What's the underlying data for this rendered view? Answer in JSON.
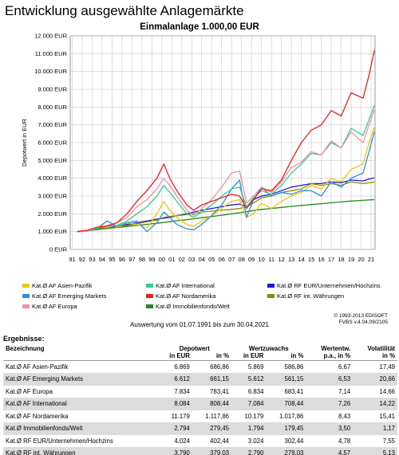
{
  "title": "Entwicklung ausgewählte Anlagemärkte",
  "chart_data": {
    "type": "line",
    "title": "Einmalanlage 1.000,00 EUR",
    "ylabel": "Depotwert in EUR",
    "xlabel": "",
    "ylim": [
      0,
      12000
    ],
    "xlim": [
      1991.5,
      2021.33
    ],
    "y_ticks": [
      {
        "value": 12000,
        "label": "12.000 EUR"
      },
      {
        "value": 11000,
        "label": "11.000 EUR"
      },
      {
        "value": 10000,
        "label": "10.000 EUR"
      },
      {
        "value": 9000,
        "label": "9.000 EUR"
      },
      {
        "value": 8000,
        "label": "8.000 EUR"
      },
      {
        "value": 7000,
        "label": "7.000 EUR"
      },
      {
        "value": 6000,
        "label": "6.000 EUR"
      },
      {
        "value": 5000,
        "label": "5.000 EUR"
      },
      {
        "value": 4000,
        "label": "4.000 EUR"
      },
      {
        "value": 3000,
        "label": "3.000 EUR"
      },
      {
        "value": 2000,
        "label": "2.000 EUR"
      },
      {
        "value": 1000,
        "label": "1.000 EUR"
      },
      {
        "value": 0,
        "label": "0 EUR"
      }
    ],
    "x_ticks": [
      {
        "value": 1991,
        "label": "91"
      },
      {
        "value": 1992,
        "label": "92"
      },
      {
        "value": 1993,
        "label": "93"
      },
      {
        "value": 1994,
        "label": "94"
      },
      {
        "value": 1995,
        "label": "95"
      },
      {
        "value": 1996,
        "label": "96"
      },
      {
        "value": 1997,
        "label": "97"
      },
      {
        "value": 1998,
        "label": "98"
      },
      {
        "value": 1999,
        "label": "99"
      },
      {
        "value": 2000,
        "label": "00"
      },
      {
        "value": 2001,
        "label": "01"
      },
      {
        "value": 2002,
        "label": "02"
      },
      {
        "value": 2003,
        "label": "03"
      },
      {
        "value": 2004,
        "label": "04"
      },
      {
        "value": 2005,
        "label": "05"
      },
      {
        "value": 2006,
        "label": "06"
      },
      {
        "value": 2007,
        "label": "07"
      },
      {
        "value": 2008,
        "label": "08"
      },
      {
        "value": 2009,
        "label": "09"
      },
      {
        "value": 2010,
        "label": "10"
      },
      {
        "value": 2011,
        "label": "11"
      },
      {
        "value": 2012,
        "label": "12"
      },
      {
        "value": 2013,
        "label": "13"
      },
      {
        "value": 2014,
        "label": "14"
      },
      {
        "value": 2015,
        "label": "15"
      },
      {
        "value": 2016,
        "label": "16"
      },
      {
        "value": 2017,
        "label": "17"
      },
      {
        "value": 2018,
        "label": "18"
      },
      {
        "value": 2019,
        "label": "19"
      },
      {
        "value": 2020,
        "label": "20"
      },
      {
        "value": 2021,
        "label": "21"
      }
    ],
    "grid": true,
    "x": [
      1991.5,
      1992.5,
      1993.5,
      1994.5,
      1995.5,
      1996.5,
      1997.5,
      1998.5,
      1999.5,
      2000.2,
      2000.8,
      2001.5,
      2002.5,
      2003.2,
      2004.0,
      2005.0,
      2006.0,
      2007.0,
      2007.8,
      2008.5,
      2009.2,
      2010.0,
      2011.0,
      2012.0,
      2013.0,
      2014.0,
      2015.0,
      2016.0,
      2017.0,
      2018.0,
      2019.0,
      2020.2,
      2020.8,
      2021.33
    ],
    "series": [
      {
        "name": "Kat.Ø AF Asien-Pazifik",
        "color": "#f5c400",
        "values": [
          1000,
          1050,
          1200,
          1600,
          1250,
          1500,
          1400,
          1200,
          2000,
          2700,
          2200,
          1800,
          1400,
          1300,
          1600,
          1900,
          2300,
          2700,
          2800,
          1800,
          2000,
          2600,
          2300,
          2700,
          3000,
          3200,
          3600,
          3400,
          4000,
          3800,
          4500,
          4800,
          6000,
          6869
        ]
      },
      {
        "name": "Kat.Ø AF Emerging Markets",
        "color": "#2a8fe0",
        "values": [
          1000,
          1050,
          1150,
          1600,
          1300,
          1500,
          1600,
          1000,
          1500,
          2100,
          1800,
          1400,
          1150,
          1100,
          1400,
          1900,
          2500,
          3400,
          3900,
          1800,
          2800,
          3500,
          3000,
          3200,
          3100,
          3300,
          3300,
          3000,
          3800,
          3500,
          4000,
          4300,
          5500,
          6612
        ]
      },
      {
        "name": "Kat.Ø AF Europa",
        "color": "#f58fa2",
        "values": [
          1000,
          1020,
          1250,
          1350,
          1500,
          1800,
          2400,
          2800,
          3400,
          4000,
          3600,
          3000,
          2200,
          1900,
          2300,
          2800,
          3500,
          4300,
          4400,
          2600,
          3000,
          3500,
          3200,
          3800,
          4600,
          4900,
          5500,
          5300,
          6100,
          5700,
          6600,
          6000,
          7000,
          7834
        ]
      },
      {
        "name": "Kat.Ø AF International",
        "color": "#2ed08e",
        "values": [
          1000,
          1030,
          1200,
          1300,
          1350,
          1600,
          2000,
          2400,
          3000,
          3600,
          3200,
          2700,
          2000,
          1800,
          2100,
          2500,
          3000,
          3400,
          3500,
          2400,
          2900,
          3300,
          3100,
          3600,
          4300,
          4800,
          5400,
          5300,
          6000,
          5700,
          6800,
          6400,
          7300,
          8084
        ]
      },
      {
        "name": "Kat.Ø AF Nordamerika",
        "color": "#e82020",
        "values": [
          1000,
          1080,
          1250,
          1300,
          1500,
          2000,
          2700,
          3300,
          4000,
          4800,
          4000,
          3300,
          2500,
          2200,
          2500,
          2700,
          2900,
          3100,
          3000,
          2300,
          2800,
          3400,
          3300,
          3900,
          5000,
          6000,
          6700,
          7000,
          7800,
          7500,
          8800,
          8500,
          9800,
          11179
        ]
      },
      {
        "name": "Kat.Ø Immobilienfonds/Welt",
        "color": "#1e8a1e",
        "values": [
          1000,
          1050,
          1110,
          1170,
          1230,
          1290,
          1350,
          1410,
          1470,
          1520,
          1560,
          1610,
          1670,
          1720,
          1780,
          1850,
          1920,
          2000,
          2060,
          2120,
          2190,
          2250,
          2300,
          2360,
          2420,
          2470,
          2520,
          2570,
          2620,
          2670,
          2720,
          2760,
          2780,
          2794
        ]
      },
      {
        "name": "Kat.Ø RF EUR/Unternehmen/Hochzins",
        "color": "#1a1ad8",
        "values": [
          1000,
          1070,
          1180,
          1200,
          1300,
          1400,
          1500,
          1600,
          1700,
          1750,
          1800,
          1900,
          2000,
          2100,
          2200,
          2300,
          2400,
          2500,
          2550,
          2400,
          2800,
          3000,
          3100,
          3300,
          3500,
          3600,
          3700,
          3700,
          3800,
          3750,
          3900,
          3850,
          3950,
          4024
        ]
      },
      {
        "name": "Kat.Ø RF int. Währungen",
        "color": "#8a8a00",
        "values": [
          1000,
          1050,
          1150,
          1200,
          1250,
          1350,
          1450,
          1550,
          1650,
          1800,
          1850,
          1900,
          1950,
          2000,
          2100,
          2150,
          2200,
          2250,
          2300,
          2400,
          2600,
          2900,
          3000,
          3200,
          3300,
          3400,
          3700,
          3600,
          3700,
          3600,
          3800,
          3700,
          3750,
          3790
        ]
      }
    ]
  },
  "legend": [
    "Kat.Ø AF Asien-Pazifik",
    "Kat.Ø AF International",
    "Kat.Ø RF EUR/Unternehmen/Hochzins",
    "Kat.Ø AF Emerging Markets",
    "Kat.Ø AF Nordamerika",
    "Kat.Ø RF int. Währungen",
    "Kat.Ø AF Europa",
    "Kat.Ø Immobilienfonds/Welt"
  ],
  "legend_colors": [
    "#f5c400",
    "#2ed08e",
    "#1a1ad8",
    "#2a8fe0",
    "#e82020",
    "#8a8a00",
    "#f58fa2",
    "#1e8a1e"
  ],
  "copyright": {
    "line1": "© 1993-2013 EDISOFT",
    "line2": "FVBS v.4.04.09/2105"
  },
  "evaluation_range": "Auswertung vom 01.07.1991 bis zum 30.04.2021",
  "results": {
    "heading": "Ergebnisse:",
    "headers": {
      "name": "Bezeichnung",
      "depotwert": "Depotwert",
      "wertzuwachs": "Wertzuwachs",
      "wertentw": "Wertentw.",
      "volatilitaet": "Volatilität",
      "in_eur": "in EUR",
      "in_pct": "in %",
      "pa_pct": "p.a., in %",
      "in_pct2": "in %"
    },
    "rows": [
      {
        "name": "Kat.Ø AF Asien-Pazifik",
        "dw_eur": "6.869",
        "dw_pct": "686,86",
        "wz_eur": "5.869",
        "wz_pct": "586,86",
        "pa": "6,67",
        "vol": "17,49"
      },
      {
        "name": "Kat.Ø AF Emerging Markets",
        "dw_eur": "6.612",
        "dw_pct": "661,15",
        "wz_eur": "5.612",
        "wz_pct": "561,15",
        "pa": "6,53",
        "vol": "20,66"
      },
      {
        "name": "Kat.Ø AF Europa",
        "dw_eur": "7.834",
        "dw_pct": "783,41",
        "wz_eur": "6.834",
        "wz_pct": "683,41",
        "pa": "7,14",
        "vol": "14,66"
      },
      {
        "name": "Kat.Ø AF International",
        "dw_eur": "8.084",
        "dw_pct": "808,44",
        "wz_eur": "7.084",
        "wz_pct": "708,44",
        "pa": "7,26",
        "vol": "14,22"
      },
      {
        "name": "Kat.Ø AF Nordamerika",
        "dw_eur": "11.179",
        "dw_pct": "1.117,86",
        "wz_eur": "10.179",
        "wz_pct": "1.017,86",
        "pa": "8,43",
        "vol": "15,41"
      },
      {
        "name": "Kat.Ø Immobilienfonds/Welt",
        "dw_eur": "2.794",
        "dw_pct": "279,45",
        "wz_eur": "1.794",
        "wz_pct": "179,45",
        "pa": "3,50",
        "vol": "1,17"
      },
      {
        "name": "Kat.Ø RF EUR/Unternehmen/Hochzins",
        "dw_eur": "4.024",
        "dw_pct": "402,44",
        "wz_eur": "3.024",
        "wz_pct": "302,44",
        "pa": "4,78",
        "vol": "7,55"
      },
      {
        "name": "Kat.Ø RF int. Währungen",
        "dw_eur": "3.790",
        "dw_pct": "379,03",
        "wz_eur": "2.790",
        "wz_pct": "279,03",
        "pa": "4,57",
        "vol": "5,13"
      }
    ]
  }
}
